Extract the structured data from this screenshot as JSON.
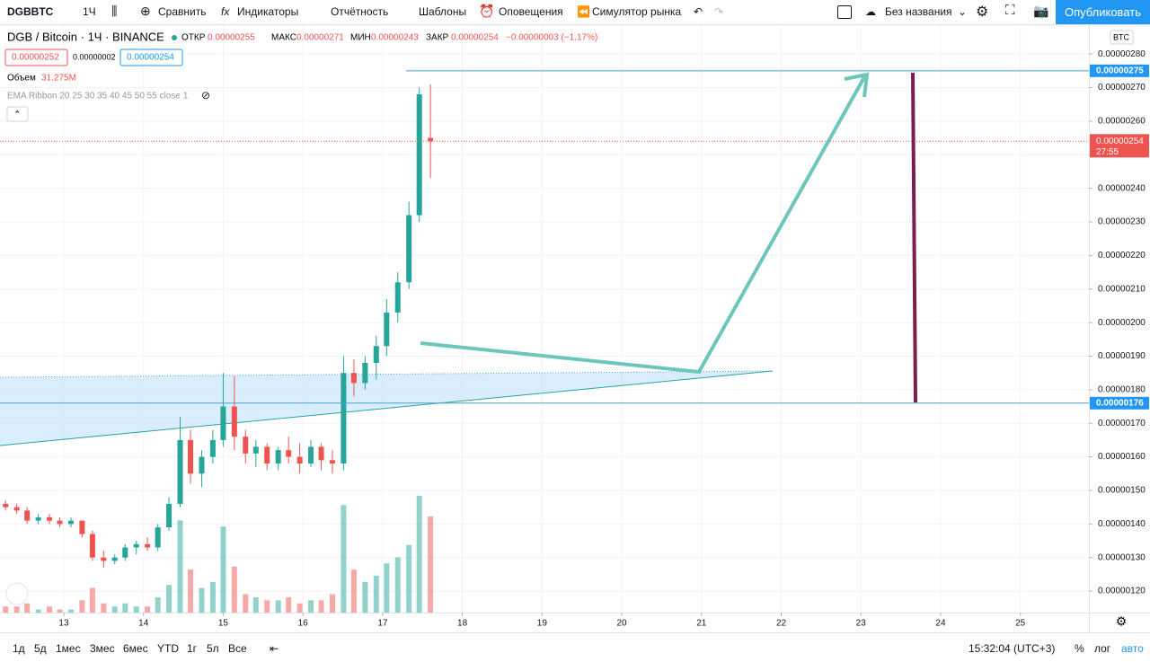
{
  "toolbar": {
    "symbol": "DGBBTC",
    "interval": "1Ч",
    "compare": "Сравнить",
    "indicators": "Индикаторы",
    "reports": "Отчётность",
    "templates": "Шаблоны",
    "alerts": "Оповещения",
    "replay": "Симулятор рынка",
    "layout_name": "Без названия",
    "publish": "Опубликовать"
  },
  "legend": {
    "title": "DGB / Bitcoin · 1Ч · BINANCE",
    "open_label": "ОТКР",
    "open": "0.00000255",
    "high_label": "МАКС",
    "high": "0.00000271",
    "low_label": "МИН",
    "low": "0.00000243",
    "close_label": "ЗАКР",
    "close": "0.00000254",
    "change": "−0.00000003 (−1.17%)",
    "bid": "0.00000252",
    "spread": "0.00000002",
    "ask": "0.00000254",
    "volume_label": "Объем",
    "volume_value": "31.275M",
    "indicator": "EMA Ribbon 20 25 30 35 40 45 50 55 close 1",
    "currency": "BTC"
  },
  "bottom_bar": {
    "ranges": [
      "1д",
      "5д",
      "1мес",
      "3мес",
      "6мес",
      "YTD",
      "1г",
      "5л",
      "Все"
    ],
    "time": "15:32:04 (UTC+3)",
    "percent": "%",
    "log": "лог",
    "auto": "авто"
  },
  "chart_data": {
    "type": "candlestick",
    "candle_x": [
      12.27,
      12.41,
      12.54,
      12.68,
      12.82,
      12.95,
      13.09,
      13.23,
      13.36,
      13.5,
      13.64,
      13.77,
      13.91,
      14.05,
      14.18,
      14.32,
      14.46,
      14.59,
      14.73,
      14.87,
      15.0,
      15.14,
      15.28,
      15.41,
      15.55,
      15.69,
      15.82,
      15.96,
      16.1,
      16.23,
      16.37,
      16.51,
      16.64,
      16.78,
      16.92,
      17.05,
      17.19,
      17.33,
      17.46,
      17.6
    ],
    "candles": [
      [
        1.46e-06,
        1.47e-06,
        1.44e-06,
        1.45e-06
      ],
      [
        1.45e-06,
        1.46e-06,
        1.43e-06,
        1.44e-06
      ],
      [
        1.44e-06,
        1.45e-06,
        1.4e-06,
        1.41e-06
      ],
      [
        1.41e-06,
        1.43e-06,
        1.4e-06,
        1.42e-06
      ],
      [
        1.42e-06,
        1.43e-06,
        1.4e-06,
        1.41e-06
      ],
      [
        1.41e-06,
        1.42e-06,
        1.39e-06,
        1.4e-06
      ],
      [
        1.4e-06,
        1.42e-06,
        1.39e-06,
        1.41e-06
      ],
      [
        1.41e-06,
        1.41e-06,
        1.36e-06,
        1.37e-06
      ],
      [
        1.37e-06,
        1.38e-06,
        1.29e-06,
        1.3e-06
      ],
      [
        1.3e-06,
        1.32e-06,
        1.27e-06,
        1.29e-06
      ],
      [
        1.29e-06,
        1.31e-06,
        1.28e-06,
        1.3e-06
      ],
      [
        1.3e-06,
        1.34e-06,
        1.29e-06,
        1.33e-06
      ],
      [
        1.33e-06,
        1.35e-06,
        1.31e-06,
        1.34e-06
      ],
      [
        1.34e-06,
        1.36e-06,
        1.32e-06,
        1.33e-06
      ],
      [
        1.33e-06,
        1.4e-06,
        1.32e-06,
        1.39e-06
      ],
      [
        1.39e-06,
        1.48e-06,
        1.38e-06,
        1.46e-06
      ],
      [
        1.46e-06,
        1.72e-06,
        1.45e-06,
        1.65e-06
      ],
      [
        1.65e-06,
        1.68e-06,
        1.52e-06,
        1.55e-06
      ],
      [
        1.55e-06,
        1.62e-06,
        1.51e-06,
        1.6e-06
      ],
      [
        1.6e-06,
        1.68e-06,
        1.58e-06,
        1.65e-06
      ],
      [
        1.65e-06,
        1.85e-06,
        1.63e-06,
        1.75e-06
      ],
      [
        1.75e-06,
        1.84e-06,
        1.62e-06,
        1.66e-06
      ],
      [
        1.66e-06,
        1.68e-06,
        1.58e-06,
        1.61e-06
      ],
      [
        1.61e-06,
        1.65e-06,
        1.57e-06,
        1.63e-06
      ],
      [
        1.63e-06,
        1.64e-06,
        1.56e-06,
        1.58e-06
      ],
      [
        1.58e-06,
        1.63e-06,
        1.56e-06,
        1.62e-06
      ],
      [
        1.62e-06,
        1.66e-06,
        1.58e-06,
        1.6e-06
      ],
      [
        1.6e-06,
        1.64e-06,
        1.55e-06,
        1.58e-06
      ],
      [
        1.58e-06,
        1.65e-06,
        1.57e-06,
        1.63e-06
      ],
      [
        1.63e-06,
        1.64e-06,
        1.56e-06,
        1.59e-06
      ],
      [
        1.59e-06,
        1.62e-06,
        1.55e-06,
        1.58e-06
      ],
      [
        1.58e-06,
        1.9e-06,
        1.56e-06,
        1.85e-06
      ],
      [
        1.85e-06,
        1.89e-06,
        1.78e-06,
        1.82e-06
      ],
      [
        1.82e-06,
        1.9e-06,
        1.8e-06,
        1.88e-06
      ],
      [
        1.88e-06,
        1.96e-06,
        1.83e-06,
        1.93e-06
      ],
      [
        1.93e-06,
        2.07e-06,
        1.9e-06,
        2.03e-06
      ],
      [
        2.03e-06,
        2.15e-06,
        2e-06,
        2.12e-06
      ],
      [
        2.12e-06,
        2.36e-06,
        2.1e-06,
        2.32e-06
      ],
      [
        2.32e-06,
        2.7e-06,
        2.3e-06,
        2.68e-06
      ],
      [
        2.55e-06,
        2.71e-06,
        2.43e-06,
        2.54e-06
      ]
    ],
    "volumes": [
      2,
      2,
      3,
      1,
      2,
      1,
      1,
      4,
      8,
      3,
      2,
      3,
      2,
      2,
      5,
      9,
      30,
      14,
      8,
      10,
      28,
      15,
      6,
      5,
      4,
      4,
      5,
      3,
      4,
      4,
      6,
      35,
      14,
      10,
      12,
      16,
      18,
      22,
      38,
      31.275
    ],
    "up_color": "#26a69a",
    "down_color": "#ef5350",
    "ylim": [
      1.136e-06,
      2.886e-06
    ],
    "yticks": [
      {
        "value": 2.8e-06,
        "label": "0.00000280"
      },
      {
        "value": 2.7e-06,
        "label": "0.00000270"
      },
      {
        "value": 2.6e-06,
        "label": "0.00000260"
      },
      {
        "value": 2.5e-06,
        "label": "0.00000250"
      },
      {
        "value": 2.4e-06,
        "label": "0.00000240"
      },
      {
        "value": 2.3e-06,
        "label": "0.00000230"
      },
      {
        "value": 2.2e-06,
        "label": "0.00000220"
      },
      {
        "value": 2.1e-06,
        "label": "0.00000210"
      },
      {
        "value": 2e-06,
        "label": "0.00000200"
      },
      {
        "value": 1.9e-06,
        "label": "0.00000190"
      },
      {
        "value": 1.8e-06,
        "label": "0.00000180"
      },
      {
        "value": 1.7e-06,
        "label": "0.00000170"
      },
      {
        "value": 1.6e-06,
        "label": "0.00000160"
      },
      {
        "value": 1.5e-06,
        "label": "0.00000150"
      },
      {
        "value": 1.4e-06,
        "label": "0.00000140"
      },
      {
        "value": 1.3e-06,
        "label": "0.00000130"
      },
      {
        "value": 1.2e-06,
        "label": "0.00000120"
      }
    ],
    "xlim": [
      12.2,
      25.86
    ],
    "xticks": [
      13,
      14,
      15,
      16,
      17,
      18,
      19,
      20,
      21,
      22,
      23,
      24,
      25
    ],
    "levels": [
      {
        "value": 2.75e-06,
        "label": "0.00000275"
      },
      {
        "value": 1.76e-06,
        "label": "0.00000176"
      }
    ],
    "last_price": {
      "value": 2.54e-06,
      "label": "0.00000254",
      "countdown": "27:55"
    },
    "grid": true
  }
}
